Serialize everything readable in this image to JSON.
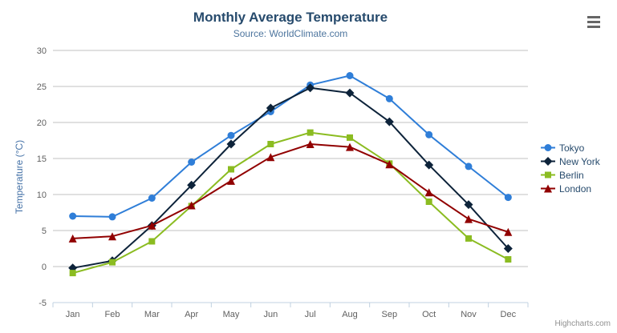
{
  "header": {
    "title": "Monthly Average Temperature",
    "subtitle": "Source: WorldClimate.com"
  },
  "credits": "Highcharts.com",
  "context_menu_icon": "hamburger-icon",
  "chart_data": {
    "type": "line",
    "title": "Monthly Average Temperature",
    "subtitle": "Source: WorldClimate.com",
    "xlabel": "",
    "ylabel": "Temperature (°C)",
    "categories": [
      "Jan",
      "Feb",
      "Mar",
      "Apr",
      "May",
      "Jun",
      "Jul",
      "Aug",
      "Sep",
      "Oct",
      "Nov",
      "Dec"
    ],
    "series": [
      {
        "name": "Tokyo",
        "color": "#2f7ed8",
        "marker": "circle",
        "values": [
          7.0,
          6.9,
          9.5,
          14.5,
          18.2,
          21.5,
          25.2,
          26.5,
          23.3,
          18.3,
          13.9,
          9.6
        ]
      },
      {
        "name": "New York",
        "color": "#0d233a",
        "marker": "diamond",
        "values": [
          -0.2,
          0.8,
          5.7,
          11.3,
          17.0,
          22.0,
          24.8,
          24.1,
          20.1,
          14.1,
          8.6,
          2.5
        ]
      },
      {
        "name": "Berlin",
        "color": "#8bbc21",
        "marker": "square",
        "values": [
          -0.9,
          0.6,
          3.5,
          8.4,
          13.5,
          17.0,
          18.6,
          17.9,
          14.3,
          9.0,
          3.9,
          1.0
        ]
      },
      {
        "name": "London",
        "color": "#910000",
        "marker": "triangle",
        "values": [
          3.9,
          4.2,
          5.7,
          8.5,
          11.9,
          15.2,
          17.0,
          16.6,
          14.2,
          10.3,
          6.6,
          4.8
        ]
      }
    ],
    "ylim": [
      -5,
      30
    ],
    "ytick_step": 5,
    "grid": true,
    "legend_position": "right",
    "colors": {
      "grid_line": "#c0c0c0",
      "axis_line": "#c0d0e0",
      "tick_label": "#606060",
      "title_text": "#274b6d",
      "subtitle_text": "#4d759e",
      "axis_title_text": "#4572a7",
      "legend_text": "#274b6d",
      "credits_text": "#909090"
    }
  }
}
